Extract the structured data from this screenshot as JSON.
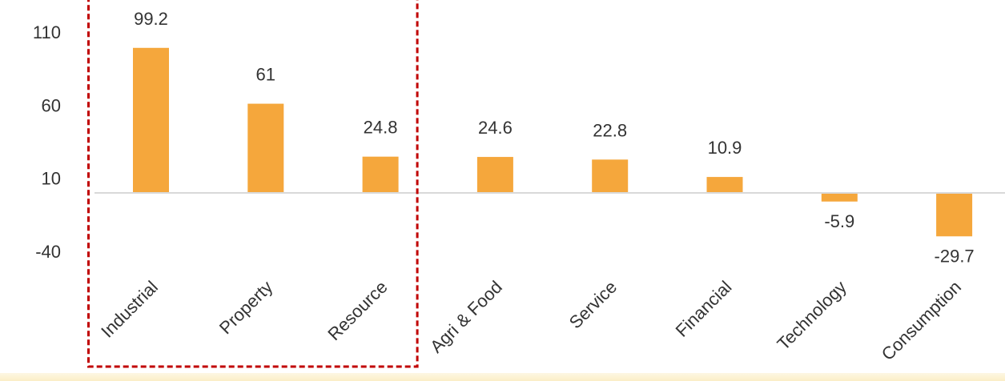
{
  "chart_data": {
    "type": "bar",
    "categories": [
      "Industrial",
      "Property",
      "Resource",
      "Agri & Food",
      "Service",
      "Financial",
      "Technology",
      "Consumption"
    ],
    "values": [
      99.2,
      61,
      24.8,
      24.6,
      22.8,
      10.9,
      -5.9,
      -29.7
    ],
    "value_labels": [
      "99.2",
      "61",
      "24.8",
      "24.6",
      "22.8",
      "10.9",
      "-5.9",
      "-29.7"
    ],
    "y_ticks": [
      110,
      60,
      10,
      -40
    ],
    "y_tick_labels": [
      "110",
      "60",
      "10",
      "-40"
    ],
    "ylim": [
      -40,
      110
    ],
    "grid": false,
    "legend": "none",
    "highlighted_categories": [
      "Industrial",
      "Property",
      "Resource"
    ],
    "colors": {
      "bar": "#f5a73c",
      "axis": "#d9d9d9",
      "highlight_box": "#c00000",
      "text": "#333333"
    }
  }
}
